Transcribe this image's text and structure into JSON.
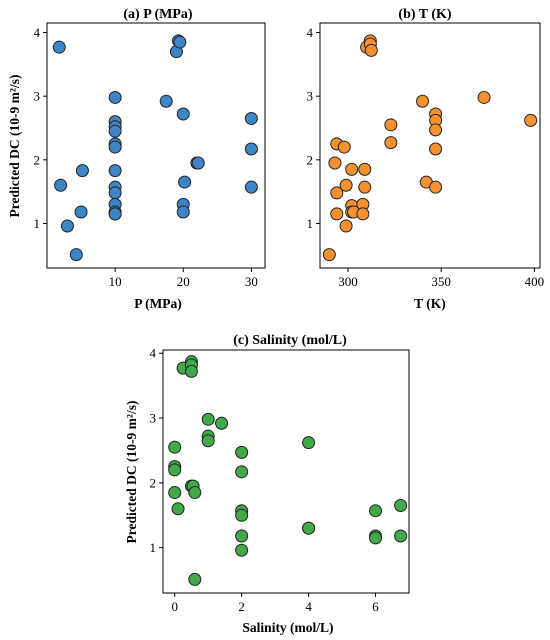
{
  "chart_data": [
    {
      "type": "scatter",
      "title": "(a) P (MPa)",
      "xlabel": "P (MPa)",
      "ylabel": "Predicted DC (10-9 m²/s)",
      "xlim": [
        0,
        32
      ],
      "ylim": [
        0.3,
        4.15
      ],
      "xticks": [
        10,
        20,
        30
      ],
      "yticks": [
        1,
        2,
        3,
        4
      ],
      "color": "#3d85c6",
      "points": [
        [
          1.8,
          3.77
        ],
        [
          2,
          1.6
        ],
        [
          3,
          0.96
        ],
        [
          4.3,
          0.51
        ],
        [
          5,
          1.18
        ],
        [
          5.2,
          1.83
        ],
        [
          10,
          2.98
        ],
        [
          10,
          2.6
        ],
        [
          10,
          2.52
        ],
        [
          10,
          2.45
        ],
        [
          10,
          2.25
        ],
        [
          10,
          2.2
        ],
        [
          10,
          1.83
        ],
        [
          10,
          1.57
        ],
        [
          10,
          1.48
        ],
        [
          10,
          1.3
        ],
        [
          10,
          1.18
        ],
        [
          10,
          1.15
        ],
        [
          10,
          1.15
        ],
        [
          17.5,
          2.92
        ],
        [
          19,
          3.7
        ],
        [
          19.3,
          3.87
        ],
        [
          19.5,
          3.85
        ],
        [
          20,
          2.72
        ],
        [
          20,
          1.3
        ],
        [
          20,
          1.18
        ],
        [
          20.2,
          1.65
        ],
        [
          22,
          1.95
        ],
        [
          22.2,
          1.95
        ],
        [
          30,
          2.65
        ],
        [
          30,
          2.17
        ],
        [
          30,
          1.57
        ]
      ]
    },
    {
      "type": "scatter",
      "title": "(b) T (K)",
      "xlabel": "T (K)",
      "ylabel": "",
      "xlim": [
        285,
        403
      ],
      "ylim": [
        0.3,
        4.15
      ],
      "xticks": [
        300,
        350,
        400
      ],
      "yticks": [
        1,
        2,
        3,
        4
      ],
      "color": "#f5922f",
      "points": [
        [
          290,
          0.51
        ],
        [
          293,
          1.95
        ],
        [
          294,
          2.25
        ],
        [
          294,
          1.48
        ],
        [
          294,
          1.15
        ],
        [
          298,
          2.2
        ],
        [
          299,
          1.6
        ],
        [
          299,
          0.96
        ],
        [
          302,
          1.85
        ],
        [
          302,
          1.28
        ],
        [
          302,
          1.18
        ],
        [
          303,
          1.18
        ],
        [
          308,
          1.3
        ],
        [
          308,
          1.15
        ],
        [
          309,
          1.85
        ],
        [
          309,
          1.57
        ],
        [
          310,
          3.77
        ],
        [
          312,
          3.87
        ],
        [
          312,
          3.82
        ],
        [
          312.5,
          3.72
        ],
        [
          323,
          2.55
        ],
        [
          323,
          2.27
        ],
        [
          340,
          2.92
        ],
        [
          342,
          1.65
        ],
        [
          347,
          2.72
        ],
        [
          347,
          2.62
        ],
        [
          347,
          2.47
        ],
        [
          347,
          2.17
        ],
        [
          347,
          1.57
        ],
        [
          373,
          2.98
        ],
        [
          398,
          2.62
        ]
      ]
    },
    {
      "type": "scatter",
      "title": "(c) Salinity (mol/L)",
      "xlabel": "Salinity (mol/L)",
      "ylabel": "Predicted DC (10-9 m²/s)",
      "xlim": [
        -0.35,
        7.0
      ],
      "ylim": [
        0.3,
        4.05
      ],
      "xticks": [
        0,
        2,
        4,
        6
      ],
      "yticks": [
        1,
        2,
        3,
        4
      ],
      "color": "#3faa46",
      "points": [
        [
          0,
          2.55
        ],
        [
          0,
          2.25
        ],
        [
          0,
          2.2
        ],
        [
          0,
          1.85
        ],
        [
          0.1,
          1.6
        ],
        [
          0.25,
          3.77
        ],
        [
          0.5,
          3.87
        ],
        [
          0.5,
          3.82
        ],
        [
          0.5,
          3.72
        ],
        [
          0.5,
          1.95
        ],
        [
          0.55,
          1.95
        ],
        [
          0.6,
          1.85
        ],
        [
          0.6,
          0.51
        ],
        [
          1,
          2.98
        ],
        [
          1,
          2.72
        ],
        [
          1,
          2.65
        ],
        [
          1.4,
          2.92
        ],
        [
          2,
          2.47
        ],
        [
          2,
          2.17
        ],
        [
          2,
          1.57
        ],
        [
          2,
          1.5
        ],
        [
          2,
          1.18
        ],
        [
          2,
          0.96
        ],
        [
          4,
          2.62
        ],
        [
          4,
          1.3
        ],
        [
          4,
          1.3
        ],
        [
          6,
          1.57
        ],
        [
          6,
          1.18
        ],
        [
          6,
          1.15
        ],
        [
          6.75,
          1.65
        ],
        [
          6.75,
          1.18
        ]
      ]
    }
  ]
}
